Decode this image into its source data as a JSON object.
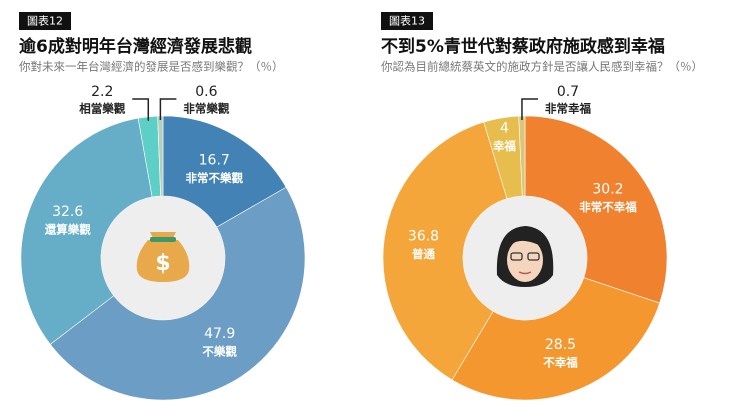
{
  "chart_data": [
    {
      "type": "donut",
      "tag": "圖表12",
      "title": "逾6成對明年台灣經濟發展悲觀",
      "subtitle": "你對未來一年台灣經濟的發展是否感到樂觀？（％）",
      "categories": [
        "非常不樂觀",
        "不樂觀",
        "還算樂觀",
        "相當樂觀",
        "非常樂觀"
      ],
      "values": [
        16.7,
        47.9,
        32.6,
        2.2,
        0.6
      ],
      "colors": [
        "#4282b5",
        "#6b9dc5",
        "#66adc8",
        "#5ecfc6",
        "#b6cfbd"
      ]
    },
    {
      "type": "donut",
      "tag": "圖表13",
      "title": "不到5%青世代對蔡政府施政感到幸福",
      "subtitle": "你認為目前總統蔡英文的施政方針是否讓人民感到幸福？（％）",
      "categories": [
        "非常不幸福",
        "不幸福",
        "普通",
        "幸福",
        "非常幸福"
      ],
      "values": [
        30.2,
        28.5,
        36.8,
        4.0,
        0.7
      ],
      "colors": [
        "#f0812f",
        "#f4972f",
        "#f5a63b",
        "#e7bd4e",
        "#d9c679"
      ]
    }
  ]
}
